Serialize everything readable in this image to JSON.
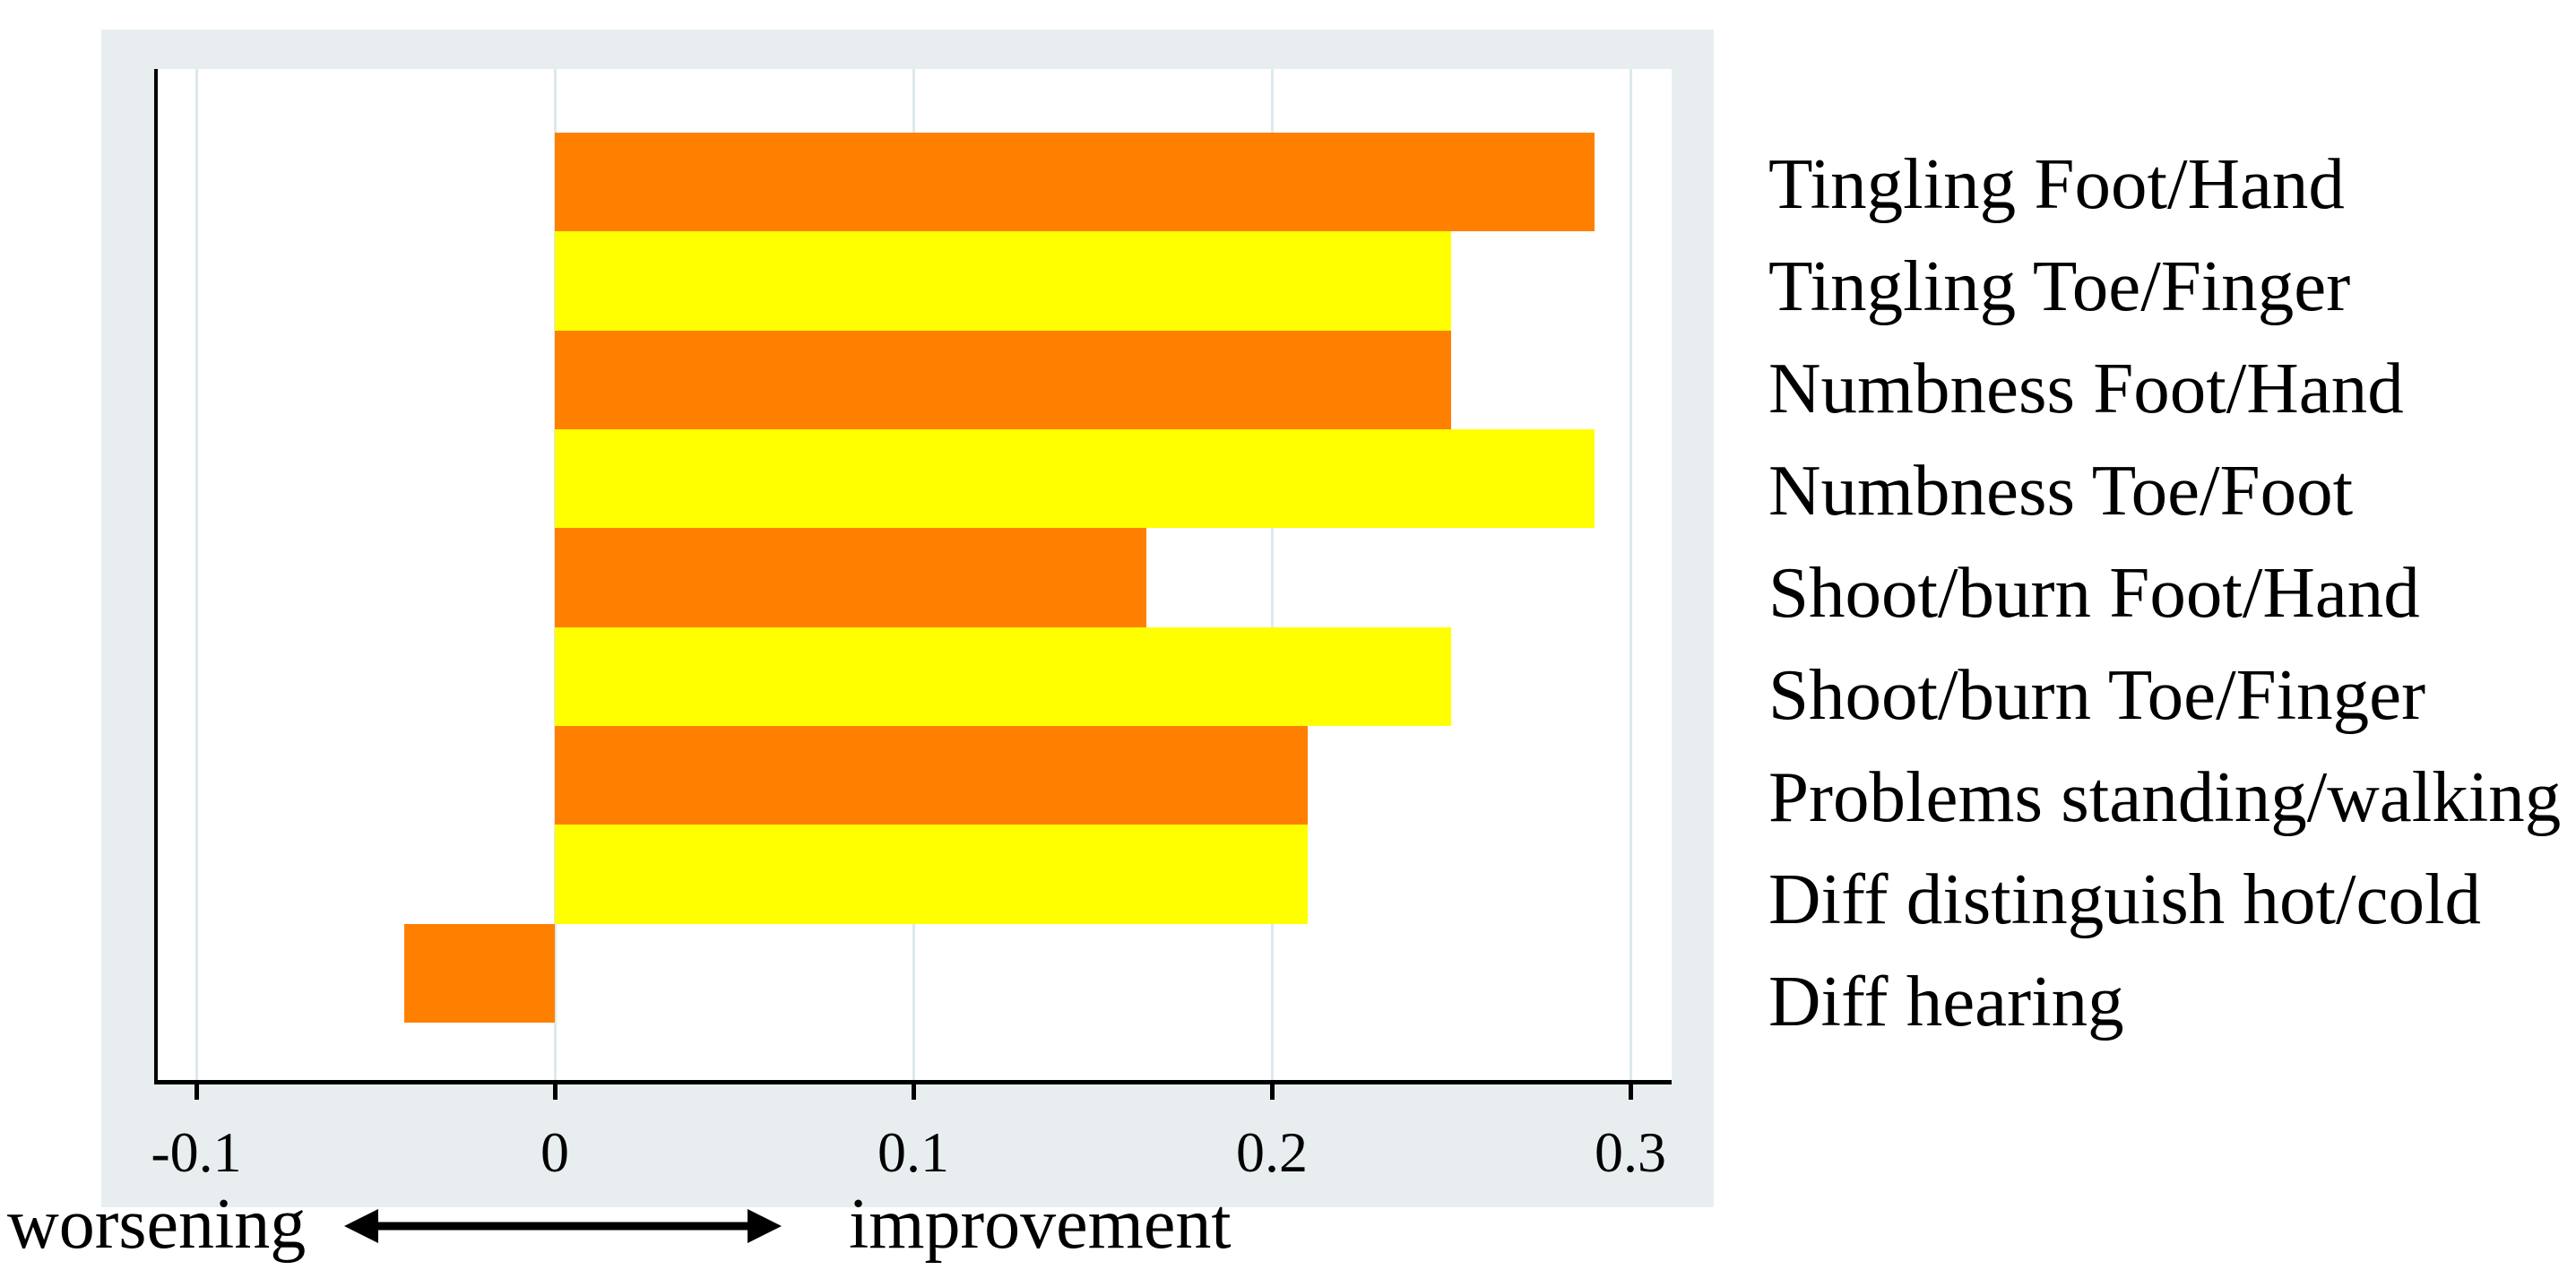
{
  "figure": {
    "background_color": "#ffffff",
    "panel_color": "#e8eef0",
    "plot_background_color": "#ffffff",
    "grid_color": "#dde9ec",
    "axis_color": "#000000",
    "text_color": "#000000"
  },
  "chart_data": {
    "type": "bar",
    "orientation": "horizontal",
    "title": "",
    "categories": [
      "Tingling Foot/Hand",
      "Tingling Toe/Finger",
      "Numbness Foot/Hand",
      "Numbness Toe/Foot",
      "Shoot/burn Foot/Hand",
      "Shoot/burn Toe/Finger",
      "Problems standing/walking",
      "Diff distinguish hot/cold",
      "Diff hearing"
    ],
    "values": [
      0.29,
      0.25,
      0.25,
      0.29,
      0.165,
      0.25,
      0.21,
      0.21,
      -0.042
    ],
    "bar_colors": [
      "#ff8000",
      "#ffff00",
      "#ff8000",
      "#ffff00",
      "#ff8000",
      "#ffff00",
      "#ff8000",
      "#ffff00",
      "#ff8000"
    ],
    "x_tick_values": [
      -0.1,
      0,
      0.1,
      0.2,
      0.3
    ],
    "x_tick_labels": [
      "-0.1",
      "0",
      "0.1",
      "0.2",
      "0.3"
    ],
    "xlim": [
      -0.112,
      0.31
    ],
    "grid": true,
    "legend": null,
    "axis_annotation": {
      "left_label": "worsening",
      "right_label": "improvement"
    }
  }
}
